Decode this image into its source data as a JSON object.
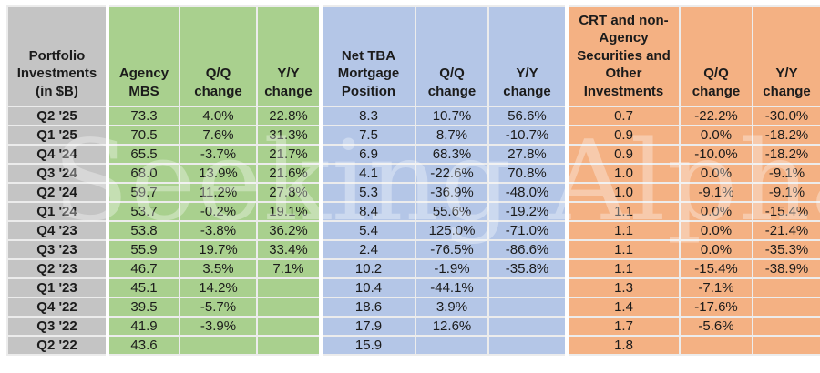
{
  "watermark": "Seeking Alpha",
  "colors": {
    "label_bg": "#c4c4c4",
    "agency_section_bg": "#a9d08e",
    "tba_section_bg": "#b4c6e7",
    "crt_section_bg": "#f4b183",
    "gridline": "#ececec"
  },
  "chart_data": {
    "type": "table",
    "title": "Portfolio Investments (in $B)",
    "columns": [
      "Portfolio Investments (in $B)",
      "Agency MBS",
      "Q/Q change",
      "Y/Y change",
      "Net TBA Mortgage Position",
      "Q/Q change",
      "Y/Y change",
      "CRT and non-Agency Securities and Other Investments",
      "Q/Q change",
      "Y/Y change"
    ],
    "rows": [
      {
        "label": "Q2 '25",
        "cells": [
          "73.3",
          "4.0%",
          "22.8%",
          "8.3",
          "10.7%",
          "56.6%",
          "0.7",
          "-22.2%",
          "-30.0%"
        ]
      },
      {
        "label": "Q1 '25",
        "cells": [
          "70.5",
          "7.6%",
          "31.3%",
          "7.5",
          "8.7%",
          "-10.7%",
          "0.9",
          "0.0%",
          "-18.2%"
        ]
      },
      {
        "label": "Q4 '24",
        "cells": [
          "65.5",
          "-3.7%",
          "21.7%",
          "6.9",
          "68.3%",
          "27.8%",
          "0.9",
          "-10.0%",
          "-18.2%"
        ]
      },
      {
        "label": "Q3 '24",
        "cells": [
          "68.0",
          "13.9%",
          "21.6%",
          "4.1",
          "-22.6%",
          "70.8%",
          "1.0",
          "0.0%",
          "-9.1%"
        ]
      },
      {
        "label": "Q2 '24",
        "cells": [
          "59.7",
          "11.2%",
          "27.8%",
          "5.3",
          "-36.9%",
          "-48.0%",
          "1.0",
          "-9.1%",
          "-9.1%"
        ]
      },
      {
        "label": "Q1 '24",
        "cells": [
          "53.7",
          "-0.2%",
          "19.1%",
          "8.4",
          "55.6%",
          "-19.2%",
          "1.1",
          "0.0%",
          "-15.4%"
        ]
      },
      {
        "label": "Q4 '23",
        "cells": [
          "53.8",
          "-3.8%",
          "36.2%",
          "5.4",
          "125.0%",
          "-71.0%",
          "1.1",
          "0.0%",
          "-21.4%"
        ]
      },
      {
        "label": "Q3 '23",
        "cells": [
          "55.9",
          "19.7%",
          "33.4%",
          "2.4",
          "-76.5%",
          "-86.6%",
          "1.1",
          "0.0%",
          "-35.3%"
        ]
      },
      {
        "label": "Q2 '23",
        "cells": [
          "46.7",
          "3.5%",
          "7.1%",
          "10.2",
          "-1.9%",
          "-35.8%",
          "1.1",
          "-15.4%",
          "-38.9%"
        ]
      },
      {
        "label": "Q1 '23",
        "cells": [
          "45.1",
          "14.2%",
          "",
          "10.4",
          "-44.1%",
          "",
          "1.3",
          "-7.1%",
          ""
        ]
      },
      {
        "label": "Q4 '22",
        "cells": [
          "39.5",
          "-5.7%",
          "",
          "18.6",
          "3.9%",
          "",
          "1.4",
          "-17.6%",
          ""
        ]
      },
      {
        "label": "Q3 '22",
        "cells": [
          "41.9",
          "-3.9%",
          "",
          "17.9",
          "12.6%",
          "",
          "1.7",
          "-5.6%",
          ""
        ]
      },
      {
        "label": "Q2 '22",
        "cells": [
          "43.6",
          "",
          "",
          "15.9",
          "",
          "",
          "1.8",
          "",
          ""
        ]
      }
    ]
  }
}
